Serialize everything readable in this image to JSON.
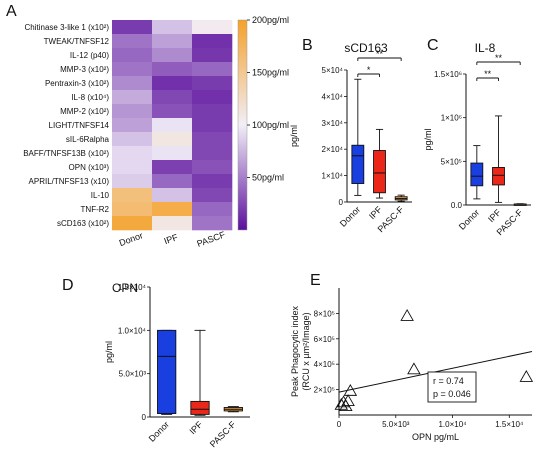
{
  "panels": {
    "A": "A",
    "B": "B",
    "C": "C",
    "D": "D",
    "E": "E"
  },
  "colors": {
    "heat_low": "#5b0f9c",
    "heat_mid": "#f2eef8",
    "heat_high": "#f4a12a",
    "donor": "#1a3fe0",
    "ipf": "#ea2718",
    "pascf": "#f0a142"
  },
  "chart_data": [
    {
      "id": "A",
      "type": "heatmap",
      "rows": [
        "Chitinase 3-like 1 (x10²)",
        "TWEAK/TNFSF12",
        "IL-12 (p40)",
        "MMP-3 (x10²)",
        "Pentraxin-3 (x10²)",
        "IL-8 (x10⁴)",
        "MMP-2 (x10²)",
        "LIGHT/TNFSF14",
        "sIL-6Ralpha",
        "BAFF/TNFSF13B (x10²)",
        "OPN (x10³)",
        "APRIL/TNFSF13 (x10)",
        "IL-10",
        "TNF-R2",
        "sCD163 (x10²)"
      ],
      "columns": [
        "Donor",
        "IPF",
        "PASCF"
      ],
      "values": [
        [
          20,
          80,
          105
        ],
        [
          45,
          65,
          15
        ],
        [
          40,
          55,
          18
        ],
        [
          45,
          35,
          40
        ],
        [
          55,
          15,
          20
        ],
        [
          70,
          25,
          15
        ],
        [
          60,
          30,
          20
        ],
        [
          65,
          95,
          20
        ],
        [
          80,
          110,
          25
        ],
        [
          90,
          95,
          25
        ],
        [
          90,
          22,
          30
        ],
        [
          85,
          40,
          20
        ],
        [
          160,
          80,
          25
        ],
        [
          165,
          185,
          40
        ],
        [
          190,
          110,
          45
        ]
      ],
      "colorbar": {
        "min": 0,
        "max": 200,
        "ticks": [
          "200pg/ml",
          "150pg/ml",
          "100pg/ml",
          "50pg/ml"
        ],
        "tick_values": [
          200,
          150,
          100,
          50
        ]
      }
    },
    {
      "id": "B",
      "type": "box",
      "title": "sCD163",
      "ylabel": "pg/ml",
      "ylim": [
        0,
        50000
      ],
      "ytick_labels": [
        "5×10⁴",
        "4×10⁴",
        "3×10⁴",
        "2×10⁴",
        "1×10⁴",
        "0"
      ],
      "ytick_values": [
        50000,
        40000,
        30000,
        20000,
        10000,
        0
      ],
      "categories": [
        "Donor",
        "IPF",
        "PASC-F"
      ],
      "boxes": [
        {
          "min": 2500,
          "q1": 7000,
          "median": 17500,
          "q3": 21500,
          "max": 46500
        },
        {
          "min": 1500,
          "q1": 3500,
          "median": 11000,
          "q3": 19500,
          "max": 27500
        },
        {
          "min": 300,
          "q1": 800,
          "median": 1300,
          "q3": 2000,
          "max": 2600
        }
      ],
      "sig": [
        {
          "pair": [
            0,
            1
          ],
          "label": "*"
        },
        {
          "pair": [
            0,
            2
          ],
          "label": "**"
        }
      ]
    },
    {
      "id": "C",
      "type": "box",
      "title": "IL-8",
      "ylabel": "pg/ml",
      "ylim": [
        0,
        1500000
      ],
      "ytick_labels": [
        "1.5×10⁶",
        "1×10⁶",
        "5×10⁵",
        "0.0"
      ],
      "ytick_values": [
        1500000,
        1000000,
        500000,
        0
      ],
      "categories": [
        "Donor",
        "IPF",
        "PASC-F"
      ],
      "boxes": [
        {
          "min": 70000,
          "q1": 220000,
          "median": 330000,
          "q3": 480000,
          "max": 680000
        },
        {
          "min": 30000,
          "q1": 230000,
          "median": 340000,
          "q3": 430000,
          "max": 1020000
        },
        {
          "min": 3000,
          "q1": 5000,
          "median": 8000,
          "q3": 12000,
          "max": 15000
        }
      ],
      "sig": [
        {
          "pair": [
            0,
            1
          ],
          "label": "**"
        },
        {
          "pair": [
            0,
            2
          ],
          "label": "**"
        }
      ]
    },
    {
      "id": "D",
      "type": "box",
      "title": "OPN",
      "ylabel": "pg/ml",
      "ylim": [
        0,
        15000
      ],
      "ytick_labels": [
        "1.5×10⁴",
        "1.0×10⁴",
        "5.0×10³",
        "0"
      ],
      "ytick_values": [
        15000,
        10000,
        5000,
        0
      ],
      "categories": [
        "Donor",
        "IPF",
        "PASC-F"
      ],
      "boxes": [
        {
          "min": 300,
          "q1": 400,
          "median": 7000,
          "q3": 10000,
          "max": 10000
        },
        {
          "min": 200,
          "q1": 300,
          "median": 900,
          "q3": 1800,
          "max": 10000
        },
        {
          "min": 600,
          "q1": 700,
          "median": 900,
          "q3": 1100,
          "max": 1200
        }
      ]
    },
    {
      "id": "E",
      "type": "scatter",
      "xlabel": "OPN pg/mL",
      "ylabel": "Peak Phagocytic index (RCU x µm²/Image)",
      "xlim": [
        0,
        17000
      ],
      "ylim": [
        0,
        1000000
      ],
      "xtick_labels": [
        "0",
        "5.0×10³",
        "1.0×10⁴",
        "1.5×10⁴"
      ],
      "xtick_values": [
        0,
        5000,
        10000,
        15000
      ],
      "ytick_labels": [
        "8×10⁵",
        "6×10⁵",
        "4×10⁵",
        "2×10⁵"
      ],
      "ytick_values": [
        800000,
        600000,
        400000,
        200000
      ],
      "points": [
        [
          200,
          80000
        ],
        [
          400,
          100000
        ],
        [
          600,
          70000
        ],
        [
          800,
          110000
        ],
        [
          1000,
          190000
        ],
        [
          6000,
          780000
        ],
        [
          6600,
          360000
        ],
        [
          16500,
          300000
        ]
      ],
      "fit": [
        [
          0,
          180000
        ],
        [
          17000,
          500000
        ]
      ],
      "annotation": [
        "r = 0.74",
        "p = 0.046"
      ]
    }
  ]
}
